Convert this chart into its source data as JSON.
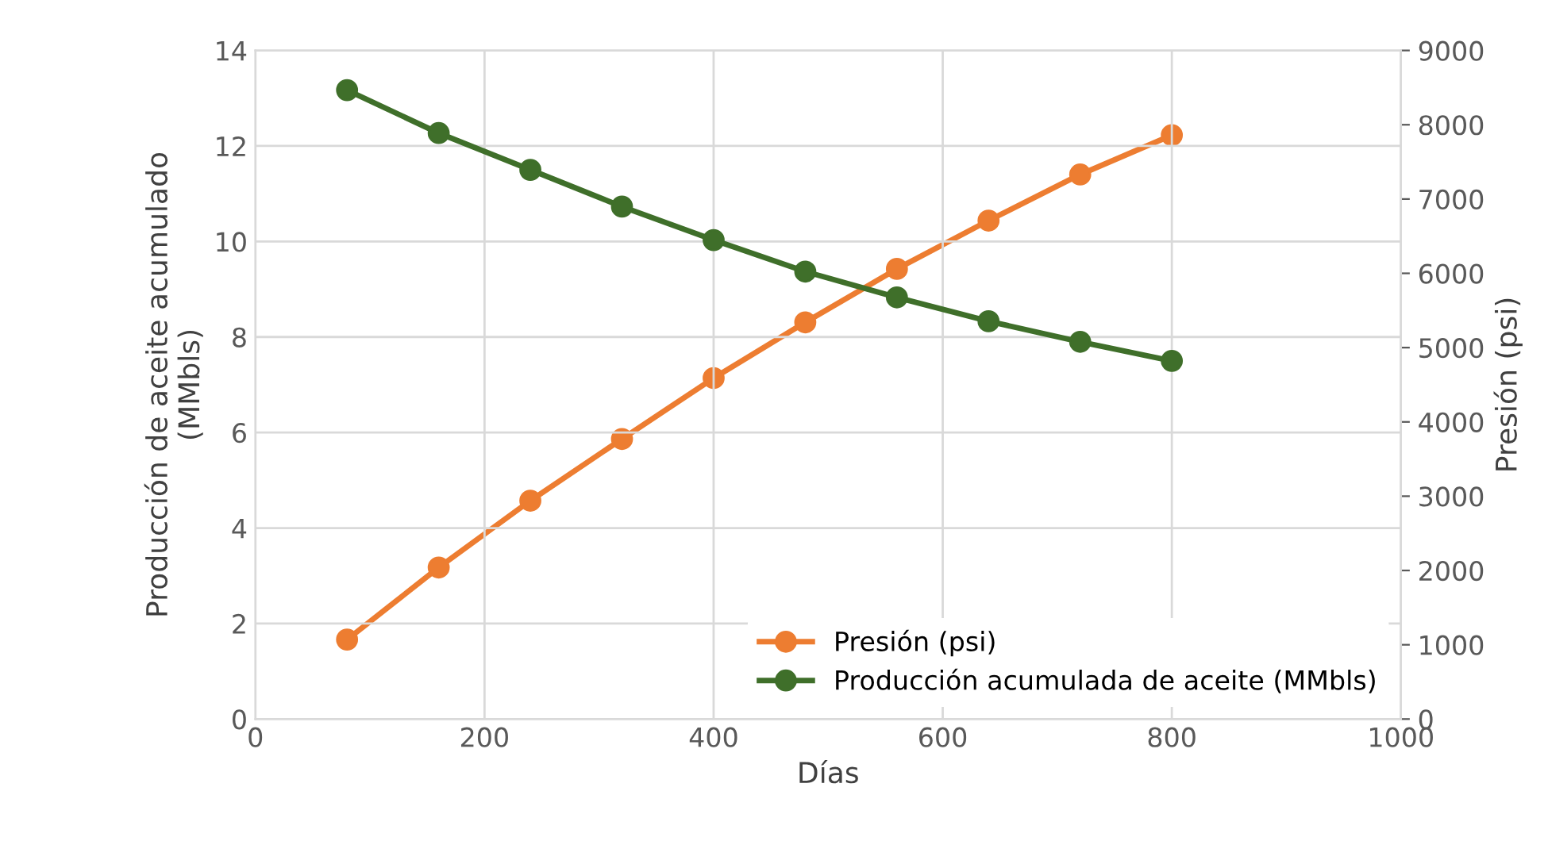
{
  "chart_data": {
    "type": "line",
    "xlabel": "Días",
    "ylabel": "Producción de aceite acumulado\n(MMbls)",
    "y2label": "Presión (psi)",
    "x": [
      80,
      160,
      240,
      320,
      400,
      480,
      560,
      640,
      720,
      800
    ],
    "series": [
      {
        "name": "Presión (psi)",
        "color": "#ed7d31",
        "axis": "y2",
        "values": [
          1070,
          2040,
          2940,
          3770,
          4590,
          5340,
          6060,
          6710,
          7330,
          7860
        ]
      },
      {
        "name": "Producción acumulada de aceite (MMbls)",
        "color": "#3f6f2a",
        "values": [
          13.17,
          12.27,
          11.5,
          10.73,
          10.03,
          9.37,
          8.83,
          8.33,
          7.9,
          7.5
        ]
      }
    ],
    "xlim": [
      0,
      1000
    ],
    "xticks": [
      0,
      200,
      400,
      600,
      800,
      1000
    ],
    "ylim": [
      0,
      14
    ],
    "yticks": [
      0,
      2,
      4,
      6,
      8,
      10,
      12,
      14
    ],
    "y2lim": [
      0,
      9000
    ],
    "y2ticks": [
      0,
      1000,
      2000,
      3000,
      4000,
      5000,
      6000,
      7000,
      8000,
      9000
    ],
    "grid": true,
    "legend": "bottom right",
    "marker": "circle",
    "line_style": "solid"
  }
}
